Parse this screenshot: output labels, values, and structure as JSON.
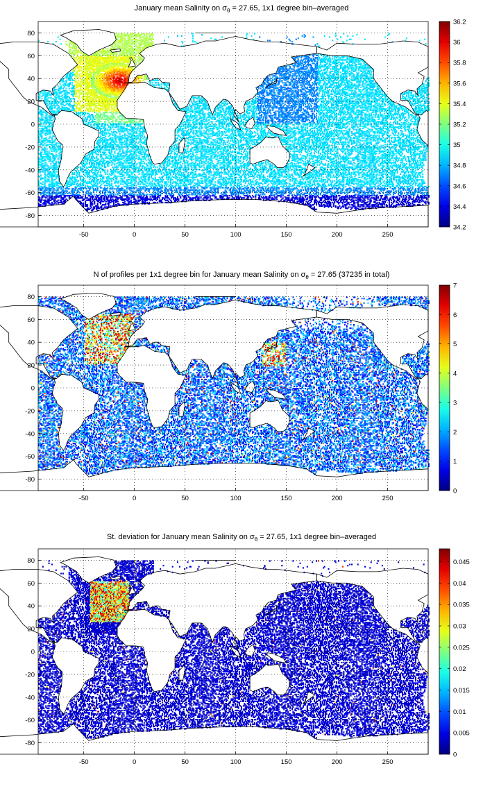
{
  "panels": [
    {
      "title_before": "January mean Salinity on σ",
      "title_sub": "θ",
      "title_after": " = 27.65, 1x1 degree bin–averaged",
      "colorbar_ticks": [
        "34.2",
        "34.4",
        "34.6",
        "34.8",
        "35",
        "35.2",
        "35.4",
        "35.6",
        "35.8",
        "36",
        "36.2"
      ],
      "colorbar_range": [
        34.2,
        36.2
      ],
      "field": "salinity"
    },
    {
      "title_before": "N of profiles per 1x1 degree bin for January mean Salinity on σ",
      "title_sub": "θ",
      "title_after": " = 27.65 (37235 in total)",
      "colorbar_ticks": [
        "0",
        "1",
        "2",
        "3",
        "4",
        "5",
        "6",
        "7"
      ],
      "colorbar_range": [
        0,
        7
      ],
      "field": "count"
    },
    {
      "title_before": "St. deviation for January mean Salinity on σ",
      "title_sub": "θ",
      "title_after": " = 27.65, 1x1 degree bin–averaged",
      "colorbar_ticks": [
        "0",
        "0.005",
        "0.01",
        "0.015",
        "0.02",
        "0.025",
        "0.03",
        "0.035",
        "0.04",
        "0.045"
      ],
      "colorbar_range": [
        0,
        0.048
      ],
      "field": "stdev"
    }
  ],
  "axes": {
    "x_ticks": [
      "-50",
      "0",
      "50",
      "100",
      "150",
      "200",
      "250"
    ],
    "y_ticks": [
      "80",
      "60",
      "40",
      "20",
      "0",
      "-20",
      "-40",
      "-60",
      "-80"
    ],
    "xlim": [
      -95,
      290
    ],
    "ylim": [
      -90,
      90
    ],
    "grid": "dotted"
  },
  "colormap": "jet"
}
